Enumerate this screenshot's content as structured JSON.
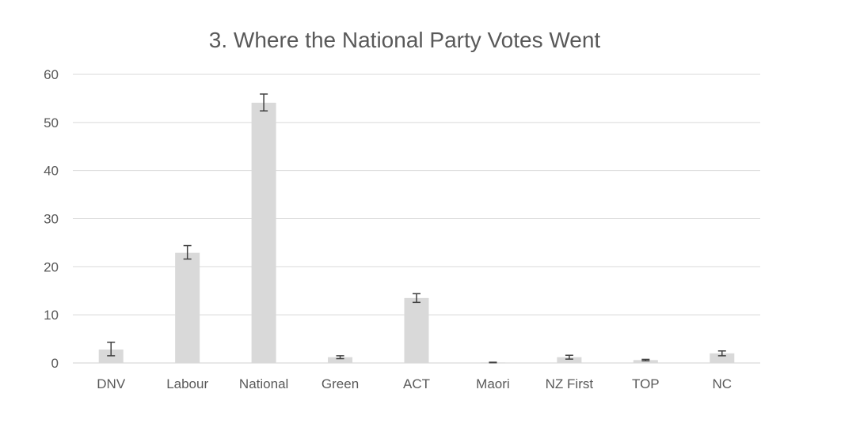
{
  "chart_data": {
    "type": "bar",
    "title": "3. Where the National Party Votes Went",
    "xlabel": "",
    "ylabel": "",
    "categories": [
      "DNV",
      "Labour",
      "National",
      "Green",
      "ACT",
      "Maori",
      "NZ First",
      "TOP",
      "NC"
    ],
    "series": [
      {
        "values": [
          2.8,
          22.9,
          54.1,
          1.2,
          13.5,
          0.1,
          1.2,
          0.6,
          2.0
        ],
        "error_low": [
          1.3,
          1.3,
          1.7,
          0.3,
          0.9,
          0.05,
          0.4,
          0.15,
          0.5
        ],
        "error_high": [
          1.5,
          1.5,
          1.8,
          0.3,
          0.9,
          0.05,
          0.4,
          0.15,
          0.5
        ]
      }
    ],
    "ylim": [
      0,
      60
    ],
    "yticks": [
      0,
      10,
      20,
      30,
      40,
      50,
      60
    ],
    "grid": true,
    "legend": "none",
    "colors": {
      "bar": "#d9d9d9",
      "grid": "#d9d9d9",
      "error_bar": "#404040",
      "text": "#595959"
    }
  }
}
